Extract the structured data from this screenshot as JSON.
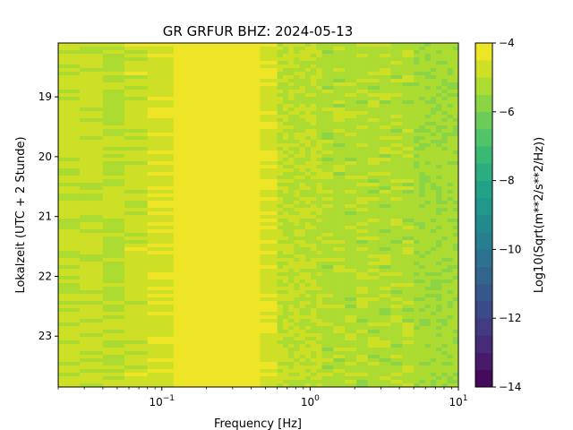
{
  "chart_data": {
    "type": "heatmap",
    "title": "GR GRFUR  BHZ: 2024-05-13",
    "xlabel": "Frequency [Hz]",
    "ylabel": "Lokalzeit (UTC + 2 Stunde)",
    "colorbar_label": "Log10(Sqrt(m**2/s**2/Hz))",
    "colormap": "viridis",
    "x_scale": "log",
    "xlim": [
      0.02,
      10
    ],
    "x_ticks": [
      {
        "value": 0.1,
        "base": "10",
        "exp": "−1"
      },
      {
        "value": 1,
        "base": "10",
        "exp": "0"
      },
      {
        "value": 10,
        "base": "10",
        "exp": "1"
      }
    ],
    "ylim": [
      18.1,
      23.85
    ],
    "y_inverted": true,
    "y_ticks": [
      "19",
      "20",
      "21",
      "22",
      "23"
    ],
    "color_range": [
      -14,
      -4
    ],
    "colorbar_ticks": [
      "−4",
      "−6",
      "−8",
      "−10",
      "−12",
      "−14"
    ],
    "colorbar_levels": 20,
    "grid": false,
    "bands": [
      {
        "f_min": 0.02,
        "f_max": 0.028,
        "value": -4.9
      },
      {
        "f_min": 0.028,
        "f_max": 0.04,
        "value": -4.85
      },
      {
        "f_min": 0.04,
        "f_max": 0.056,
        "value": -5.05
      },
      {
        "f_min": 0.056,
        "f_max": 0.08,
        "value": -4.8
      },
      {
        "f_min": 0.08,
        "f_max": 0.12,
        "value": -4.6
      },
      {
        "f_min": 0.12,
        "f_max": 0.46,
        "value": -4.1
      },
      {
        "f_min": 0.46,
        "f_max": 0.6,
        "value": -4.6
      },
      {
        "f_min": 0.6,
        "f_max": 1.2,
        "value": -5.0
      },
      {
        "f_min": 1.2,
        "f_max": 5.0,
        "value": -5.2
      },
      {
        "f_min": 5.0,
        "f_max": 10,
        "value": -5.35
      }
    ]
  }
}
